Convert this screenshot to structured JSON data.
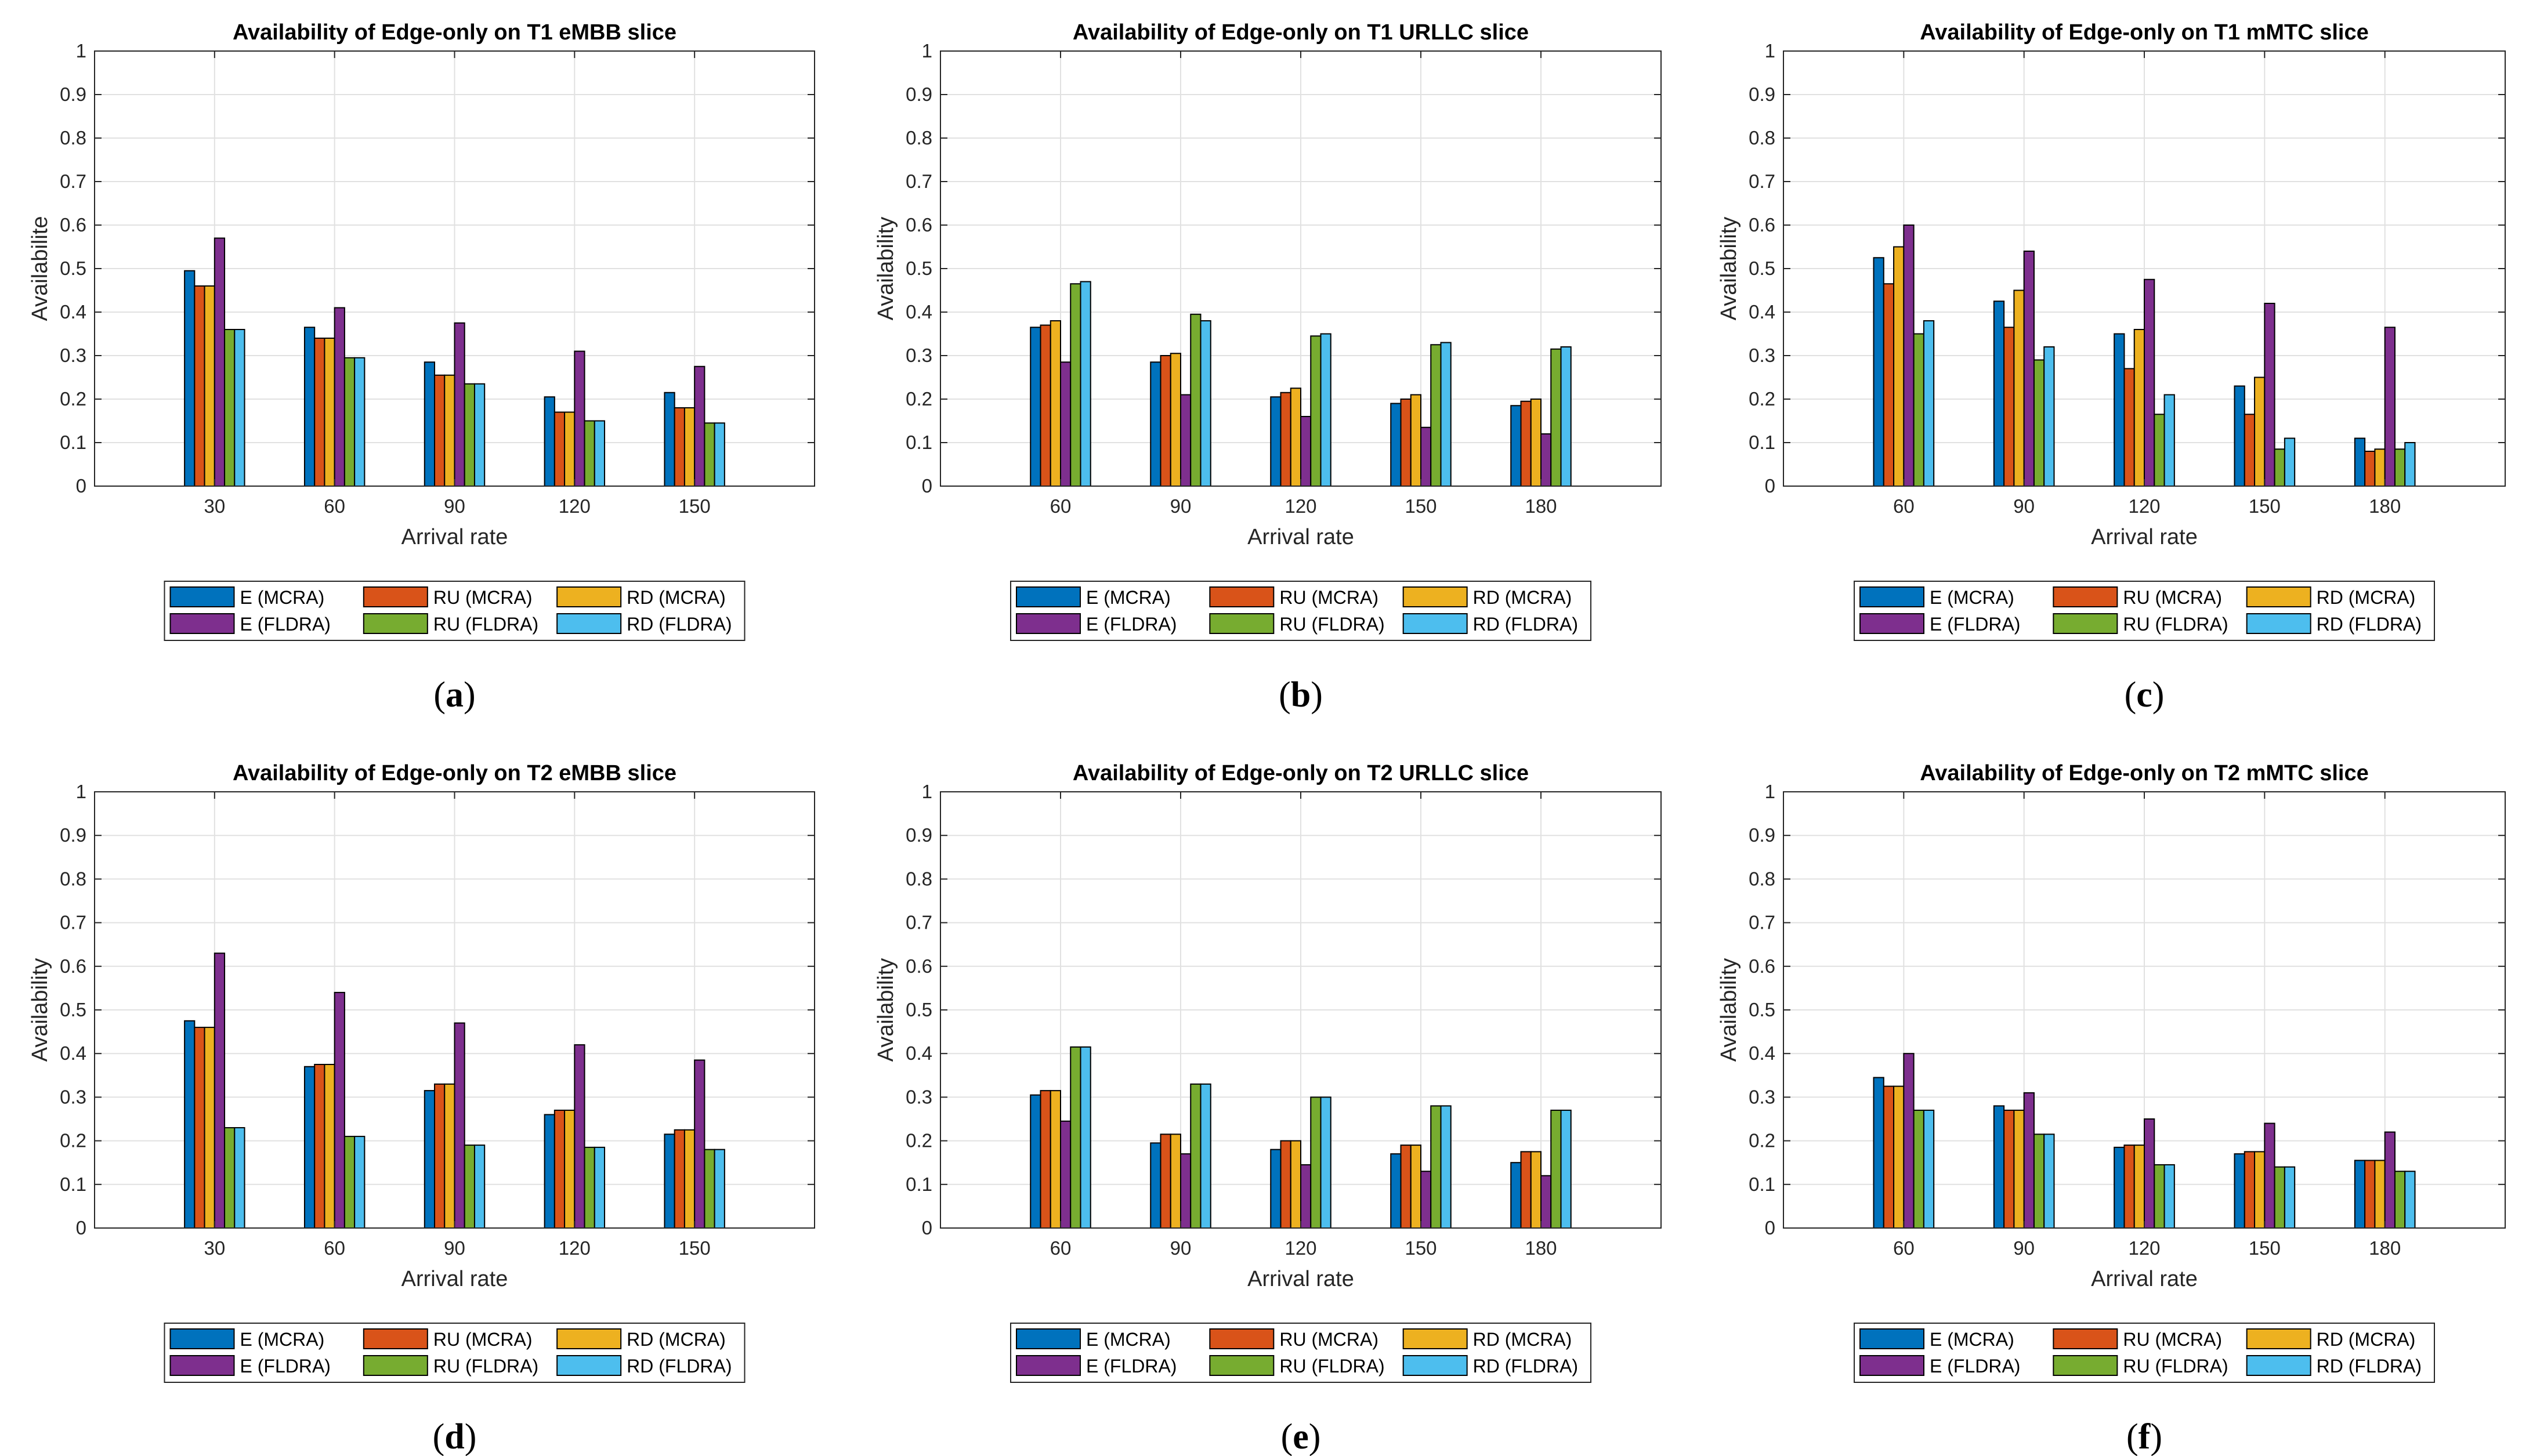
{
  "figure": {
    "series_names": [
      "E (MCRA)",
      "RU (MCRA)",
      "RD (MCRA)",
      "E (FLDRA)",
      "RU (FLDRA)",
      "RD (FLDRA)"
    ],
    "series_colors": [
      "#0072BD",
      "#D95319",
      "#EDB120",
      "#7E2F8E",
      "#77AC30",
      "#4DBEEE"
    ]
  },
  "chart_data": [
    {
      "type": "bar",
      "panel": "a",
      "title": "Availability of Edge-only on T1 eMBB slice",
      "xlabel": "Arrival rate",
      "ylabel": "Availabilite",
      "categories": [
        "30",
        "60",
        "90",
        "120",
        "150"
      ],
      "ylim": [
        0,
        1
      ],
      "yticks": [
        "0",
        "0.1",
        "0.2",
        "0.3",
        "0.4",
        "0.5",
        "0.6",
        "0.7",
        "0.8",
        "0.9",
        "1"
      ],
      "grid": true,
      "legend": "below",
      "series": [
        {
          "name": "E (MCRA)",
          "values": [
            0.495,
            0.365,
            0.285,
            0.205,
            0.215
          ]
        },
        {
          "name": "RU (MCRA)",
          "values": [
            0.46,
            0.34,
            0.255,
            0.17,
            0.18
          ]
        },
        {
          "name": "RD (MCRA)",
          "values": [
            0.46,
            0.34,
            0.255,
            0.17,
            0.18
          ]
        },
        {
          "name": "E (FLDRA)",
          "values": [
            0.57,
            0.41,
            0.375,
            0.31,
            0.275
          ]
        },
        {
          "name": "RU (FLDRA)",
          "values": [
            0.36,
            0.295,
            0.235,
            0.15,
            0.145
          ]
        },
        {
          "name": "RD (FLDRA)",
          "values": [
            0.36,
            0.295,
            0.235,
            0.15,
            0.145
          ]
        }
      ]
    },
    {
      "type": "bar",
      "panel": "b",
      "title": "Availability of Edge-only on T1 URLLC slice",
      "xlabel": "Arrival rate",
      "ylabel": "Availability",
      "categories": [
        "60",
        "90",
        "120",
        "150",
        "180"
      ],
      "ylim": [
        0,
        1
      ],
      "yticks": [
        "0",
        "0.1",
        "0.2",
        "0.3",
        "0.4",
        "0.5",
        "0.6",
        "0.7",
        "0.8",
        "0.9",
        "1"
      ],
      "grid": true,
      "legend": "below",
      "series": [
        {
          "name": "E (MCRA)",
          "values": [
            0.365,
            0.285,
            0.205,
            0.19,
            0.185
          ]
        },
        {
          "name": "RU (MCRA)",
          "values": [
            0.37,
            0.3,
            0.215,
            0.2,
            0.195
          ]
        },
        {
          "name": "RD (MCRA)",
          "values": [
            0.38,
            0.305,
            0.225,
            0.21,
            0.2
          ]
        },
        {
          "name": "E (FLDRA)",
          "values": [
            0.285,
            0.21,
            0.16,
            0.135,
            0.12
          ]
        },
        {
          "name": "RU (FLDRA)",
          "values": [
            0.465,
            0.395,
            0.345,
            0.325,
            0.315
          ]
        },
        {
          "name": "RD (FLDRA)",
          "values": [
            0.47,
            0.38,
            0.35,
            0.33,
            0.32
          ]
        }
      ]
    },
    {
      "type": "bar",
      "panel": "c",
      "title": "Availability of Edge-only on T1 mMTC slice",
      "xlabel": "Arrival rate",
      "ylabel": "Availability",
      "categories": [
        "60",
        "90",
        "120",
        "150",
        "180"
      ],
      "ylim": [
        0,
        1
      ],
      "yticks": [
        "0",
        "0.1",
        "0.2",
        "0.3",
        "0.4",
        "0.5",
        "0.6",
        "0.7",
        "0.8",
        "0.9",
        "1"
      ],
      "grid": true,
      "legend": "below",
      "series": [
        {
          "name": "E (MCRA)",
          "values": [
            0.525,
            0.425,
            0.35,
            0.23,
            0.11
          ]
        },
        {
          "name": "RU (MCRA)",
          "values": [
            0.465,
            0.365,
            0.27,
            0.165,
            0.08
          ]
        },
        {
          "name": "RD (MCRA)",
          "values": [
            0.55,
            0.45,
            0.36,
            0.25,
            0.085
          ]
        },
        {
          "name": "E (FLDRA)",
          "values": [
            0.6,
            0.54,
            0.475,
            0.42,
            0.365
          ]
        },
        {
          "name": "RU (FLDRA)",
          "values": [
            0.35,
            0.29,
            0.165,
            0.085,
            0.085
          ]
        },
        {
          "name": "RD (FLDRA)",
          "values": [
            0.38,
            0.32,
            0.21,
            0.11,
            0.1
          ]
        }
      ]
    },
    {
      "type": "bar",
      "panel": "d",
      "title": "Availability of Edge-only on T2 eMBB slice",
      "xlabel": "Arrival rate",
      "ylabel": "Availability",
      "categories": [
        "30",
        "60",
        "90",
        "120",
        "150"
      ],
      "ylim": [
        0,
        1
      ],
      "yticks": [
        "0",
        "0.1",
        "0.2",
        "0.3",
        "0.4",
        "0.5",
        "0.6",
        "0.7",
        "0.8",
        "0.9",
        "1"
      ],
      "grid": true,
      "legend": "below",
      "series": [
        {
          "name": "E (MCRA)",
          "values": [
            0.475,
            0.37,
            0.315,
            0.26,
            0.215
          ]
        },
        {
          "name": "RU (MCRA)",
          "values": [
            0.46,
            0.375,
            0.33,
            0.27,
            0.225
          ]
        },
        {
          "name": "RD (MCRA)",
          "values": [
            0.46,
            0.375,
            0.33,
            0.27,
            0.225
          ]
        },
        {
          "name": "E (FLDRA)",
          "values": [
            0.63,
            0.54,
            0.47,
            0.42,
            0.385
          ]
        },
        {
          "name": "RU (FLDRA)",
          "values": [
            0.23,
            0.21,
            0.19,
            0.185,
            0.18
          ]
        },
        {
          "name": "RD (FLDRA)",
          "values": [
            0.23,
            0.21,
            0.19,
            0.185,
            0.18
          ]
        }
      ]
    },
    {
      "type": "bar",
      "panel": "e",
      "title": "Availability of Edge-only on T2 URLLC slice",
      "xlabel": "Arrival rate",
      "ylabel": "Availability",
      "categories": [
        "60",
        "90",
        "120",
        "150",
        "180"
      ],
      "ylim": [
        0,
        1
      ],
      "yticks": [
        "0",
        "0.1",
        "0.2",
        "0.3",
        "0.4",
        "0.5",
        "0.6",
        "0.7",
        "0.8",
        "0.9",
        "1"
      ],
      "grid": true,
      "legend": "below",
      "series": [
        {
          "name": "E (MCRA)",
          "values": [
            0.305,
            0.195,
            0.18,
            0.17,
            0.15
          ]
        },
        {
          "name": "RU (MCRA)",
          "values": [
            0.315,
            0.215,
            0.2,
            0.19,
            0.175
          ]
        },
        {
          "name": "RD (MCRA)",
          "values": [
            0.315,
            0.215,
            0.2,
            0.19,
            0.175
          ]
        },
        {
          "name": "E (FLDRA)",
          "values": [
            0.245,
            0.17,
            0.145,
            0.13,
            0.12
          ]
        },
        {
          "name": "RU (FLDRA)",
          "values": [
            0.415,
            0.33,
            0.3,
            0.28,
            0.27
          ]
        },
        {
          "name": "RD (FLDRA)",
          "values": [
            0.415,
            0.33,
            0.3,
            0.28,
            0.27
          ]
        }
      ]
    },
    {
      "type": "bar",
      "panel": "f",
      "title": "Availability of Edge-only on T2 mMTC slice",
      "xlabel": "Arrival rate",
      "ylabel": "Availability",
      "categories": [
        "60",
        "90",
        "120",
        "150",
        "180"
      ],
      "ylim": [
        0,
        1
      ],
      "yticks": [
        "0",
        "0.1",
        "0.2",
        "0.3",
        "0.4",
        "0.5",
        "0.6",
        "0.7",
        "0.8",
        "0.9",
        "1"
      ],
      "grid": true,
      "legend": "below",
      "series": [
        {
          "name": "E (MCRA)",
          "values": [
            0.345,
            0.28,
            0.185,
            0.17,
            0.155
          ]
        },
        {
          "name": "RU (MCRA)",
          "values": [
            0.325,
            0.27,
            0.19,
            0.175,
            0.155
          ]
        },
        {
          "name": "RD (MCRA)",
          "values": [
            0.325,
            0.27,
            0.19,
            0.175,
            0.155
          ]
        },
        {
          "name": "E (FLDRA)",
          "values": [
            0.4,
            0.31,
            0.25,
            0.24,
            0.22
          ]
        },
        {
          "name": "RU (FLDRA)",
          "values": [
            0.27,
            0.215,
            0.145,
            0.14,
            0.13
          ]
        },
        {
          "name": "RD (FLDRA)",
          "values": [
            0.27,
            0.215,
            0.145,
            0.14,
            0.13
          ]
        }
      ]
    }
  ]
}
